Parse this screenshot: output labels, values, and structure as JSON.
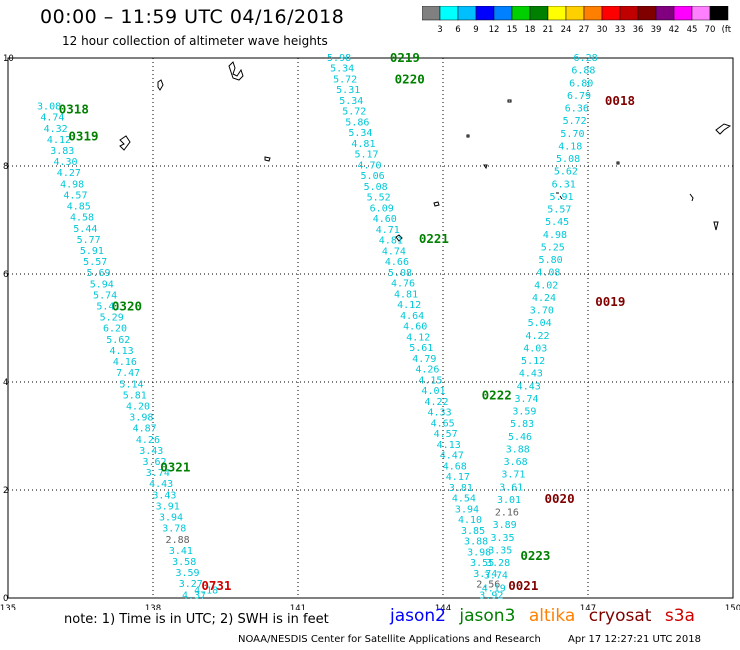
{
  "header": {
    "title": "00:00 – 11:59 UTC 04/16/2018",
    "subtitle": "12 hour collection of altimeter wave heights"
  },
  "colorbar": {
    "colors": [
      "#808080",
      "#00ffff",
      "#00bfff",
      "#0000ff",
      "#0080ff",
      "#00d000",
      "#008000",
      "#ffff00",
      "#ffd000",
      "#ff8000",
      "#ff0000",
      "#c00000",
      "#800000",
      "#800080",
      "#ff00ff",
      "#ff80ff",
      "#000000"
    ],
    "labels": [
      "3",
      "6",
      "9",
      "12",
      "15",
      "18",
      "21",
      "24",
      "27",
      "30",
      "33",
      "36",
      "39",
      "42",
      "45",
      "70",
      "(ft)"
    ]
  },
  "map": {
    "lon_ticks": [
      "135",
      "138",
      "141",
      "144",
      "147",
      "150"
    ],
    "lat_ticks": [
      "0",
      "2",
      "4",
      "6",
      "8",
      "10"
    ],
    "lon_range": [
      135,
      150
    ],
    "lat_range": [
      0,
      10
    ],
    "grid": true,
    "colors": {
      "cyan": "#00c8d8",
      "gray": "#606060",
      "jason3": "#008000",
      "cryosat": "#800000",
      "s3a": "#d00000"
    }
  },
  "time_labels": [
    {
      "text": "0318",
      "sat": "jason3",
      "lon": 136.05,
      "lat": 9.05
    },
    {
      "text": "0319",
      "sat": "jason3",
      "lon": 136.25,
      "lat": 8.55
    },
    {
      "text": "0320",
      "sat": "jason3",
      "lon": 137.15,
      "lat": 5.4
    },
    {
      "text": "0321",
      "sat": "jason3",
      "lon": 138.15,
      "lat": 2.42
    },
    {
      "text": "0731",
      "sat": "s3a",
      "lon": 139.0,
      "lat": 0.22
    },
    {
      "text": "0219",
      "sat": "jason3",
      "lon": 142.9,
      "lat": 10.0
    },
    {
      "text": "0220",
      "sat": "jason3",
      "lon": 143.0,
      "lat": 9.6
    },
    {
      "text": "0221",
      "sat": "jason3",
      "lon": 143.5,
      "lat": 6.65
    },
    {
      "text": "0222",
      "sat": "jason3",
      "lon": 144.8,
      "lat": 3.75
    },
    {
      "text": "0223",
      "sat": "jason3",
      "lon": 145.6,
      "lat": 0.78
    },
    {
      "text": "0021",
      "sat": "cryosat",
      "lon": 145.35,
      "lat": 0.22
    },
    {
      "text": "0020",
      "sat": "cryosat",
      "lon": 146.1,
      "lat": 1.83
    },
    {
      "text": "0019",
      "sat": "cryosat",
      "lon": 147.15,
      "lat": 5.48
    },
    {
      "text": "0018",
      "sat": "cryosat",
      "lon": 147.35,
      "lat": 9.2
    }
  ],
  "tracks": {
    "jason3_a": {
      "color": "cyan",
      "start": [
        135.85,
        9.1
      ],
      "end": [
        138.85,
        0.05
      ],
      "values": [
        "3.08",
        "4.74",
        "4.32",
        "4.12",
        "3.83",
        "4.30",
        "4.27",
        "4.98",
        "4.57",
        "4.85",
        "4.58",
        "5.44",
        "5.77",
        "5.91",
        "5.57",
        "5.69",
        "5.94",
        "5.74",
        "5.41",
        "5.29",
        "6.20",
        "5.62",
        "4.13",
        "4.16",
        "7.47",
        "5.14",
        "5.81",
        "4.20",
        "3.98",
        "4.87",
        "4.26",
        "3.43",
        "3.62",
        "3.74",
        "4.43",
        "3.43",
        "3.91",
        "3.94",
        "3.78",
        "2.88",
        "3.41",
        "3.58",
        "3.59",
        "3.27",
        "4.37"
      ],
      "gray": [
        39
      ]
    },
    "jason3_a_tail": {
      "color": "cyan",
      "start": [
        139.1,
        0.14
      ],
      "end": [
        139.1,
        0.14
      ],
      "values": [
        "4.18"
      ],
      "gray": []
    },
    "jason3_b": {
      "color": "cyan",
      "start": [
        141.85,
        10.0
      ],
      "end": [
        145.0,
        0.05
      ],
      "values": [
        "5.98",
        "5.34",
        "5.72",
        "5.31",
        "5.34",
        "5.72",
        "5.86",
        "5.34",
        "4.81",
        "5.17",
        "4.70",
        "5.06",
        "5.08",
        "5.52",
        "6.09",
        "4.60",
        "4.71",
        "4.81",
        "4.74",
        "4.66",
        "5.08",
        "4.76",
        "4.81",
        "4.12",
        "4.64",
        "4.60",
        "4.12",
        "5.61",
        "4.79",
        "4.26",
        "4.15",
        "4.01",
        "4.22",
        "4.33",
        "4.65",
        "4.57",
        "4.13",
        "4.47",
        "4.68",
        "4.17",
        "3.81",
        "4.54",
        "3.94",
        "4.10",
        "3.85",
        "3.88",
        "3.98",
        "3.55",
        "3.74",
        "2.56",
        "3.92"
      ],
      "gray": [
        49
      ]
    },
    "cryosat": {
      "color": "cyan",
      "start": [
        146.95,
        10.0
      ],
      "end": [
        145.05,
        0.18
      ],
      "values": [
        "6.28",
        "6.88",
        "6.80",
        "6.79",
        "6.36",
        "5.72",
        "5.70",
        "4.18",
        "5.08",
        "5.62",
        "6.31",
        "5.91",
        "5.57",
        "5.45",
        "4.98",
        "5.25",
        "5.80",
        "4.08",
        "4.02",
        "4.24",
        "3.70",
        "5.04",
        "4.22",
        "4.03",
        "5.12",
        "4.43",
        "4.43",
        "3.74",
        "3.59",
        "5.83",
        "5.46",
        "3.88",
        "3.68",
        "3.71",
        "3.61",
        "3.01",
        "2.16",
        "3.89",
        "3.35",
        "3.35",
        "3.28",
        "3.74",
        "4.19"
      ],
      "gray": [
        36
      ]
    }
  },
  "note": "note:  1) Time is in UTC;  2) SWH is in feet",
  "satellites": [
    {
      "name": "jason2",
      "color": "#0000ff"
    },
    {
      "name": "jason3",
      "color": "#008000"
    },
    {
      "name": "altika",
      "color": "#ff8000"
    },
    {
      "name": "cryosat",
      "color": "#800000"
    },
    {
      "name": "s3a",
      "color": "#d00000"
    }
  ],
  "footer": {
    "credit": "NOAA/NESDIS Center for Satellite Applications and Research",
    "timestamp": "Apr 17 12:27:21 UTC 2018"
  }
}
